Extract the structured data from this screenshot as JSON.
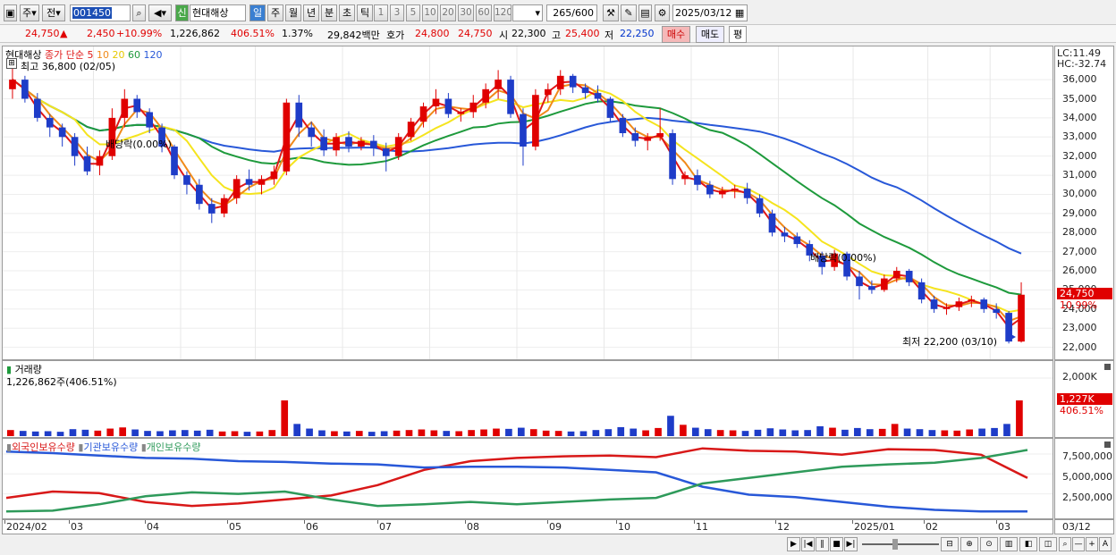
{
  "toolbar": {
    "period_type": "주",
    "compare": "전",
    "stock_code": "001450",
    "badge": "신",
    "stock_name": "현대해상",
    "periods": [
      "일",
      "주",
      "월",
      "년",
      "분",
      "초",
      "틱"
    ],
    "intervals": [
      "1",
      "3",
      "5",
      "10",
      "20",
      "30",
      "60",
      "120"
    ],
    "count": "265",
    "count_max": "/600",
    "date": "2025/03/12"
  },
  "quote": {
    "price": "24,750",
    "arrow": "▲",
    "change": "2,450",
    "change_pct": "+10.99%",
    "volume": "1,226,862",
    "volume_ratio": "406.51%",
    "turnover": "1.37%",
    "amount": "29,842백만",
    "bid_label": "호가",
    "bid1": "24,800",
    "bid2": "24,750",
    "open_label": "시",
    "open": "22,300",
    "high_label": "고",
    "high": "25,400",
    "low_label": "저",
    "low": "22,250",
    "buy_btn": "매수",
    "sell_btn": "매도",
    "eval_btn": "평"
  },
  "price_panel": {
    "stock_label": "현대해상",
    "ma_label": "종가 단순",
    "ma5": "5",
    "ma10": "10",
    "ma20": "20",
    "ma60": "60",
    "ma120": "120",
    "high_marker": "최고 36,800 (02/05)",
    "low_marker": "최저 22,200 (03/10)",
    "dividend1": "배당락(0.00%)",
    "dividend2": "배당락(0.00%)",
    "lc": "LC:11.49",
    "hc": "HC:-32.74",
    "price_tag": "24,750",
    "pct_tag": "10.99%",
    "y_ticks": [
      "36,000",
      "35,000",
      "34,000",
      "33,000",
      "32,000",
      "31,000",
      "30,000",
      "29,000",
      "28,000",
      "27,000",
      "26,000",
      "25,000",
      "24,000",
      "23,000",
      "22,000"
    ]
  },
  "volume_panel": {
    "title": "거래량",
    "value": "1,226,862주(406.51%)",
    "y_tick": "2,000K",
    "tag": "1,227K",
    "tag_pct": "406.51%"
  },
  "holding_panel": {
    "series": [
      "외국인보유수량",
      "기관보유수량",
      "개인보유수량"
    ],
    "y_ticks": [
      "7,500,000",
      "5,000,000",
      "2,500,000"
    ]
  },
  "x_labels": [
    "2024/02",
    "03",
    "04",
    "05",
    "06",
    "07",
    "08",
    "09",
    "10",
    "11",
    "12",
    "2025/01",
    "02",
    "03"
  ],
  "x_right": "03/12",
  "colors": {
    "up": "#e00000",
    "down": "#1e3cc8",
    "ma5": "#e01818",
    "ma10": "#f08a1a",
    "ma20": "#f5e41e",
    "ma60": "#1e9a3c",
    "ma120": "#2858d8",
    "foreign": "#d81818",
    "inst": "#2858d8",
    "indiv": "#2e9a5a"
  },
  "chart_data": [
    {
      "type": "candlestick",
      "title": "현대해상",
      "ylim": [
        22000,
        36800
      ],
      "x_labels": [
        "2024/02",
        "03",
        "04",
        "05",
        "06",
        "07",
        "08",
        "09",
        "10",
        "11",
        "12",
        "2025/01",
        "02",
        "03"
      ],
      "ohlc": [
        [
          35500,
          36800,
          35000,
          36000
        ],
        [
          36000,
          36200,
          34800,
          35000
        ],
        [
          35000,
          35300,
          33800,
          34000
        ],
        [
          34000,
          34200,
          33000,
          33500
        ],
        [
          33500,
          33700,
          32500,
          33000
        ],
        [
          33000,
          33200,
          31500,
          32000
        ],
        [
          32000,
          32500,
          31000,
          31200
        ],
        [
          31500,
          32300,
          31000,
          32000
        ],
        [
          32000,
          34500,
          31800,
          34000
        ],
        [
          34000,
          35500,
          33500,
          35000
        ],
        [
          35000,
          35200,
          34000,
          34300
        ],
        [
          34300,
          34500,
          33200,
          33500
        ],
        [
          33500,
          33700,
          32200,
          32500
        ],
        [
          32500,
          32600,
          30800,
          31000
        ],
        [
          31000,
          31200,
          30000,
          30500
        ],
        [
          30500,
          30800,
          29200,
          29500
        ],
        [
          29500,
          29800,
          28500,
          29000
        ],
        [
          29000,
          30000,
          28800,
          29800
        ],
        [
          29800,
          31000,
          29500,
          30800
        ],
        [
          30800,
          31300,
          30200,
          30500
        ],
        [
          30500,
          31000,
          30000,
          30800
        ],
        [
          30800,
          31500,
          30500,
          31200
        ],
        [
          31200,
          35000,
          31000,
          34800
        ],
        [
          34800,
          35200,
          33000,
          33500
        ],
        [
          33500,
          33800,
          32500,
          33000
        ],
        [
          33000,
          33400,
          32000,
          32300
        ],
        [
          32300,
          33200,
          32000,
          33000
        ],
        [
          33000,
          33300,
          32200,
          32500
        ],
        [
          32500,
          33000,
          32300,
          32800
        ],
        [
          32800,
          33100,
          32000,
          32400
        ],
        [
          32400,
          32700,
          31200,
          32000
        ],
        [
          32000,
          33200,
          31800,
          33000
        ],
        [
          33000,
          34000,
          32800,
          33800
        ],
        [
          33800,
          34800,
          33500,
          34600
        ],
        [
          34600,
          35500,
          34200,
          35000
        ],
        [
          35000,
          35300,
          34000,
          34200
        ],
        [
          34200,
          34500,
          33800,
          34300
        ],
        [
          34300,
          35200,
          34000,
          34800
        ],
        [
          34800,
          35800,
          34500,
          35500
        ],
        [
          35500,
          36500,
          35000,
          36000
        ],
        [
          36000,
          36200,
          34000,
          34200
        ],
        [
          34200,
          34500,
          31500,
          32500
        ],
        [
          32500,
          35500,
          32300,
          35200
        ],
        [
          35200,
          35800,
          34800,
          35500
        ],
        [
          35500,
          36500,
          35200,
          36200
        ],
        [
          36200,
          36300,
          35300,
          35600
        ],
        [
          35600,
          35800,
          35000,
          35300
        ],
        [
          35300,
          35700,
          34800,
          35000
        ],
        [
          35000,
          35100,
          33800,
          34000
        ],
        [
          34000,
          34200,
          33000,
          33200
        ],
        [
          33200,
          33500,
          32500,
          32800
        ],
        [
          32800,
          33200,
          32300,
          33000
        ],
        [
          33000,
          34500,
          32800,
          33200
        ],
        [
          33200,
          33400,
          30500,
          30800
        ],
        [
          30800,
          31200,
          30500,
          31000
        ],
        [
          31000,
          31300,
          30200,
          30500
        ],
        [
          30500,
          30700,
          29800,
          30000
        ],
        [
          30000,
          30400,
          29800,
          30200
        ],
        [
          30200,
          30500,
          29800,
          30300
        ],
        [
          30300,
          30600,
          29500,
          29800
        ],
        [
          29800,
          30000,
          28800,
          29000
        ],
        [
          29000,
          29200,
          27800,
          28000
        ],
        [
          28000,
          28300,
          27500,
          27800
        ],
        [
          27800,
          28000,
          27200,
          27400
        ],
        [
          27400,
          27600,
          26500,
          26800
        ],
        [
          26800,
          27000,
          25800,
          26200
        ],
        [
          26200,
          27100,
          26000,
          26900
        ],
        [
          26900,
          27000,
          25500,
          25700
        ],
        [
          25700,
          26000,
          24500,
          25200
        ],
        [
          25200,
          25500,
          24800,
          25000
        ],
        [
          25000,
          25800,
          24900,
          25600
        ],
        [
          25600,
          26200,
          25400,
          26000
        ],
        [
          26000,
          26100,
          25200,
          25400
        ],
        [
          25400,
          25600,
          24300,
          24500
        ],
        [
          24500,
          24700,
          23800,
          24000
        ],
        [
          24000,
          24300,
          23700,
          24100
        ],
        [
          24100,
          24600,
          23900,
          24400
        ],
        [
          24400,
          24700,
          24100,
          24500
        ],
        [
          24500,
          24600,
          23800,
          24000
        ],
        [
          24000,
          24300,
          23500,
          23800
        ],
        [
          23800,
          23900,
          22200,
          22300
        ],
        [
          22300,
          25400,
          22250,
          24750
        ]
      ]
    },
    {
      "type": "bar",
      "title": "거래량",
      "note": "last bar 1,226,862 (406.51%)",
      "values": [
        210,
        180,
        160,
        170,
        150,
        240,
        220,
        190,
        260,
        300,
        230,
        180,
        170,
        200,
        210,
        190,
        220,
        160,
        170,
        150,
        160,
        210,
        1230,
        420,
        260,
        200,
        170,
        160,
        180,
        150,
        170,
        190,
        210,
        230,
        200,
        180,
        170,
        210,
        230,
        260,
        250,
        290,
        240,
        190,
        180,
        160,
        170,
        210,
        240,
        310,
        260,
        200,
        280,
        700,
        390,
        290,
        240,
        210,
        200,
        180,
        220,
        270,
        230,
        200,
        210,
        340,
        290,
        220,
        280,
        240,
        250,
        420,
        260,
        240,
        210,
        200,
        190,
        230,
        260,
        280,
        420,
        1230
      ]
    },
    {
      "type": "line",
      "title": "보유수량",
      "ylim": [
        0,
        8500000
      ],
      "series": [
        {
          "name": "외국인보유수량",
          "values": [
            2000000,
            2800000,
            2600000,
            1500000,
            1000000,
            1300000,
            1800000,
            2300000,
            3600000,
            5500000,
            6600000,
            7000000,
            7200000,
            7300000,
            7100000,
            8200000,
            7900000,
            7800000,
            7400000,
            8100000,
            8000000,
            7400000,
            4500000
          ]
        },
        {
          "name": "기관보유수량",
          "values": [
            7800000,
            7600000,
            7300000,
            7000000,
            6900000,
            6600000,
            6500000,
            6300000,
            6200000,
            5800000,
            5900000,
            5900000,
            5800000,
            5500000,
            5200000,
            3400000,
            2400000,
            2100000,
            1500000,
            900000,
            500000,
            300000,
            300000
          ]
        },
        {
          "name": "개인보유수량",
          "values": [
            300000,
            400000,
            1200000,
            2200000,
            2700000,
            2500000,
            2800000,
            1800000,
            1000000,
            1200000,
            1500000,
            1200000,
            1500000,
            1800000,
            2000000,
            3800000,
            4500000,
            5200000,
            5900000,
            6200000,
            6400000,
            7000000,
            8000000
          ]
        }
      ]
    }
  ]
}
